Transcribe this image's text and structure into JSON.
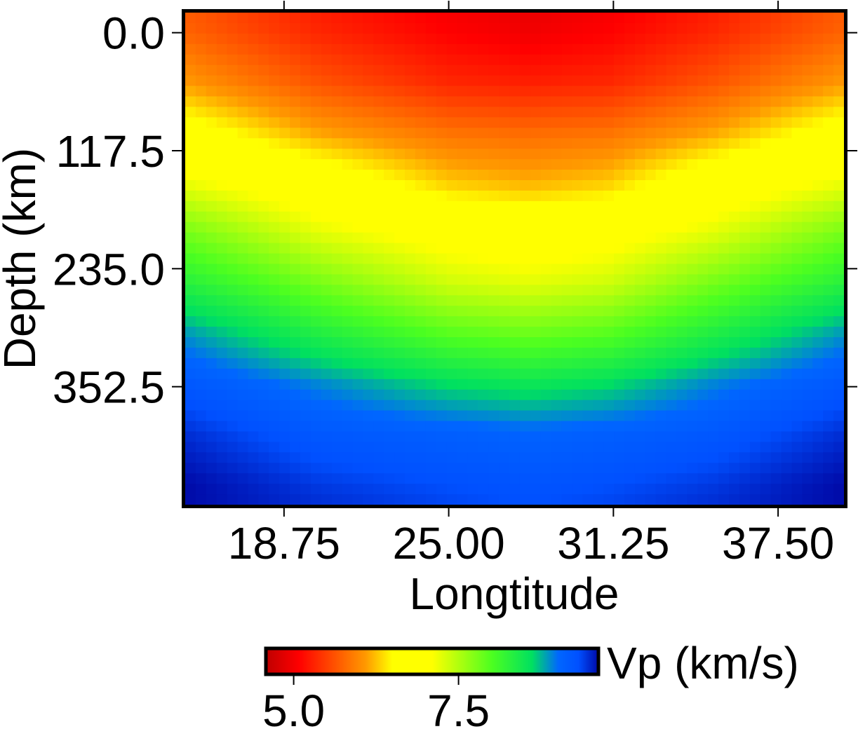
{
  "chart_data": {
    "type": "heatmap",
    "title": "",
    "xlabel": "Longtitude",
    "ylabel": "Depth (km)",
    "xlim": [
      15.0,
      40.0
    ],
    "ylim": [
      470.0,
      -20.0
    ],
    "y_inverted": true,
    "x_ticks": [
      18.75,
      25.0,
      31.25,
      37.5
    ],
    "x_tick_labels": [
      "18.75",
      "25.00",
      "31.25",
      "37.50"
    ],
    "y_ticks": [
      0.0,
      117.5,
      235.0,
      352.5
    ],
    "y_tick_labels": [
      "0.0",
      "117.5",
      "235.0",
      "352.5"
    ],
    "grid": false,
    "z_label": "Vp (km/s)",
    "z_range": [
      4.6,
      9.6
    ],
    "colorbar": {
      "label": "Vp (km/s)",
      "ticks": [
        5.0,
        7.5
      ],
      "tick_labels": [
        "5.0",
        "7.5"
      ],
      "placement": "bottom",
      "colormap": [
        {
          "value": 4.6,
          "color": "#bf0000"
        },
        {
          "value": 5.1,
          "color": "#ff0000"
        },
        {
          "value": 6.1,
          "color": "#ff9900"
        },
        {
          "value": 6.5,
          "color": "#ffff00"
        },
        {
          "value": 7.1,
          "color": "#ffff00"
        },
        {
          "value": 8.0,
          "color": "#4cff20"
        },
        {
          "value": 8.6,
          "color": "#00e060"
        },
        {
          "value": 9.0,
          "color": "#0066ff"
        },
        {
          "value": 9.3,
          "color": "#0050ff"
        },
        {
          "value": 9.6,
          "color": "#000aa8"
        }
      ]
    },
    "grid_data": {
      "x_samples": [
        15.0,
        20.0,
        25.0,
        28.0,
        31.0,
        35.0,
        40.0
      ],
      "depth_samples": [
        -20,
        0,
        50,
        100,
        150,
        200,
        250,
        300,
        350,
        400,
        450,
        470
      ],
      "vp_rows": [
        [
          5.7,
          5.3,
          5.05,
          4.95,
          5.05,
          5.3,
          5.7
        ],
        [
          5.75,
          5.35,
          5.1,
          5.0,
          5.1,
          5.35,
          5.75
        ],
        [
          6.1,
          5.65,
          5.35,
          5.3,
          5.35,
          5.65,
          6.1
        ],
        [
          6.7,
          6.15,
          5.85,
          5.8,
          5.85,
          6.15,
          6.7
        ],
        [
          7.2,
          6.8,
          6.3,
          6.2,
          6.3,
          6.8,
          7.2
        ],
        [
          7.8,
          7.25,
          6.95,
          6.85,
          6.95,
          7.25,
          7.8
        ],
        [
          8.3,
          7.8,
          7.35,
          7.25,
          7.35,
          7.8,
          8.3
        ],
        [
          8.85,
          8.35,
          7.95,
          7.85,
          7.95,
          8.35,
          8.85
        ],
        [
          9.2,
          8.9,
          8.6,
          8.5,
          8.6,
          8.9,
          9.2
        ],
        [
          9.45,
          9.2,
          9.1,
          9.05,
          9.1,
          9.2,
          9.45
        ],
        [
          9.6,
          9.4,
          9.3,
          9.25,
          9.3,
          9.4,
          9.6
        ],
        [
          9.6,
          9.45,
          9.35,
          9.3,
          9.35,
          9.45,
          9.6
        ]
      ]
    }
  }
}
